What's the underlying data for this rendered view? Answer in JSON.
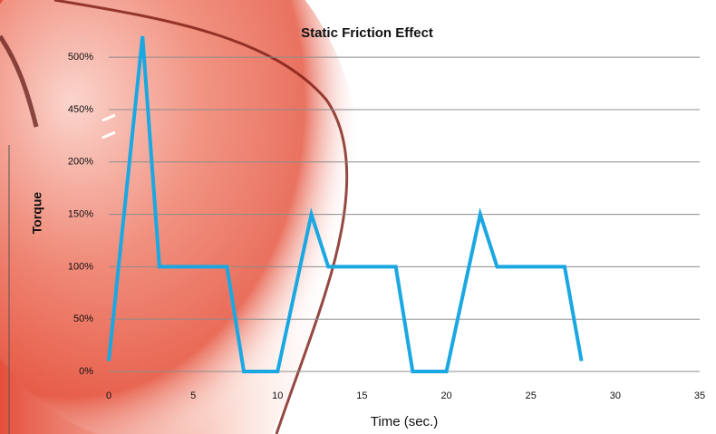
{
  "chart_data": {
    "type": "line",
    "title": "Static Friction Effect",
    "x_label": "Time (sec.)",
    "y_label": "Torque",
    "x": [
      0,
      2,
      3,
      7,
      8,
      10,
      12,
      13,
      17,
      18,
      20,
      22,
      23,
      27,
      28
    ],
    "series": [
      {
        "name": "Torque",
        "color": "#1ba8e2",
        "values": [
          10,
          520,
          100,
          100,
          0,
          0,
          150,
          100,
          100,
          0,
          0,
          150,
          100,
          100,
          10
        ]
      }
    ],
    "xlim": [
      0,
      35
    ],
    "xticks": [
      0,
      5,
      10,
      15,
      20,
      25,
      30,
      35
    ],
    "ylim": [
      0,
      520
    ],
    "yticks": [
      {
        "value": 0,
        "label": "0%"
      },
      {
        "value": 50,
        "label": "50%"
      },
      {
        "value": 100,
        "label": "100%"
      },
      {
        "value": 150,
        "label": "150%"
      },
      {
        "value": 200,
        "label": "200%"
      },
      {
        "value": 450,
        "label": "450%"
      },
      {
        "value": 500,
        "label": "500%"
      }
    ],
    "grid": true
  }
}
